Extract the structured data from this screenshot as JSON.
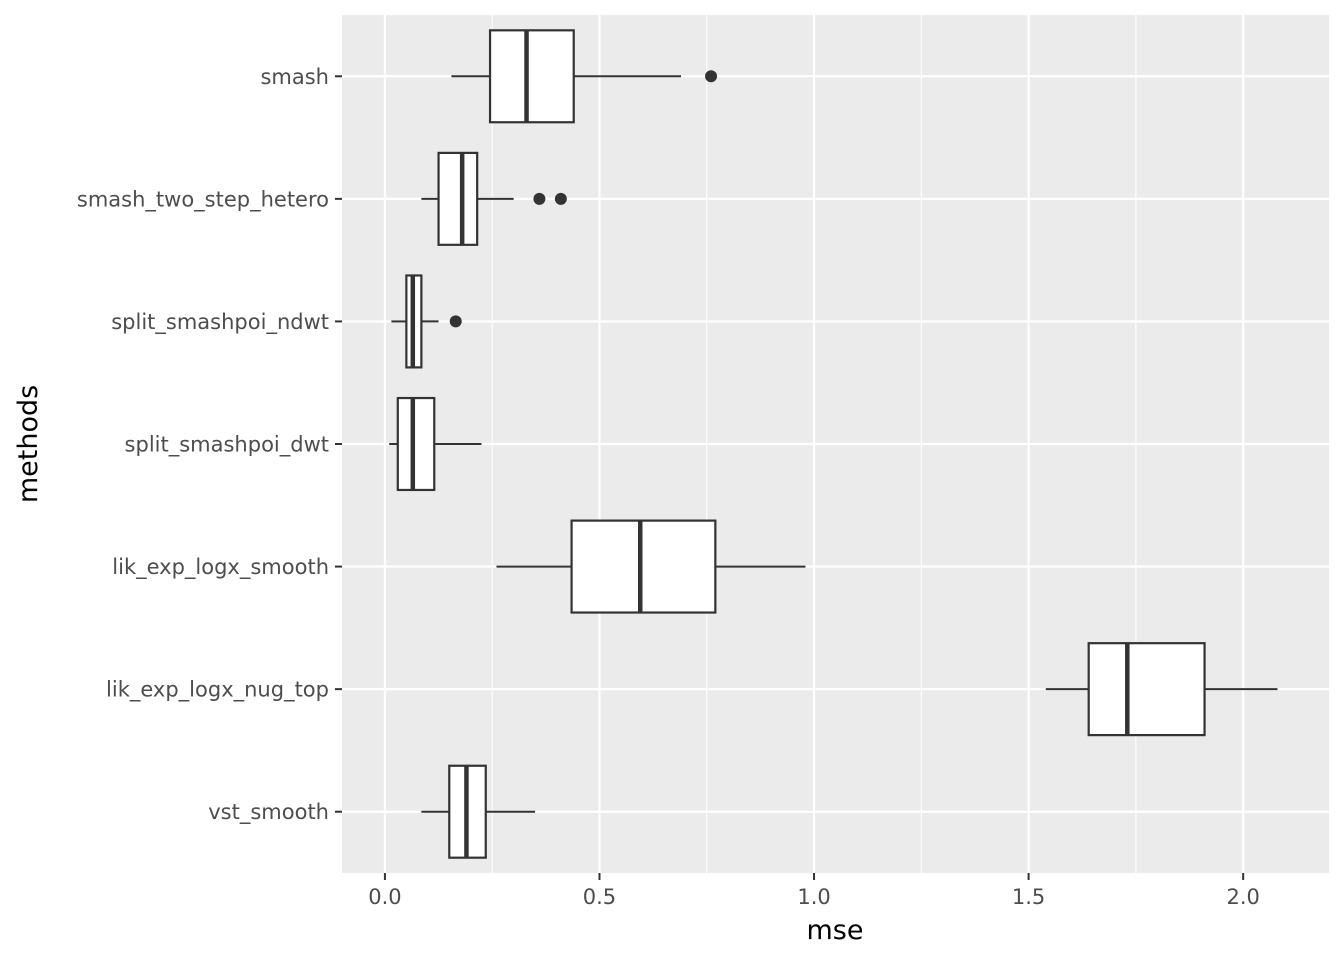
{
  "chart_data": {
    "type": "boxplot",
    "orientation": "horizontal",
    "xlabel": "mse",
    "ylabel": "methods",
    "xlim": [
      -0.1,
      2.2
    ],
    "x_ticks": [
      0.0,
      0.5,
      1.0,
      1.5,
      2.0
    ],
    "x_tick_labels": [
      "0.0",
      "0.5",
      "1.0",
      "1.5",
      "2.0"
    ],
    "grid": true,
    "legend": "none",
    "categories": [
      "smash",
      "smash_two_step_hetero",
      "split_smashpoi_ndwt",
      "split_smashpoi_dwt",
      "lik_exp_logx_smooth",
      "lik_exp_logx_nug_top",
      "vst_smooth"
    ],
    "series": [
      {
        "category": "smash",
        "whisker_low": 0.155,
        "q1": 0.245,
        "median": 0.33,
        "q3": 0.44,
        "whisker_high": 0.69,
        "outliers": [
          0.76
        ]
      },
      {
        "category": "smash_two_step_hetero",
        "whisker_low": 0.085,
        "q1": 0.125,
        "median": 0.18,
        "q3": 0.215,
        "whisker_high": 0.3,
        "outliers": [
          0.36,
          0.41
        ]
      },
      {
        "category": "split_smashpoi_ndwt",
        "whisker_low": 0.015,
        "q1": 0.05,
        "median": 0.065,
        "q3": 0.085,
        "whisker_high": 0.125,
        "outliers": [
          0.165
        ]
      },
      {
        "category": "split_smashpoi_dwt",
        "whisker_low": 0.01,
        "q1": 0.03,
        "median": 0.065,
        "q3": 0.115,
        "whisker_high": 0.225,
        "outliers": []
      },
      {
        "category": "lik_exp_logx_smooth",
        "whisker_low": 0.26,
        "q1": 0.435,
        "median": 0.595,
        "q3": 0.77,
        "whisker_high": 0.98,
        "outliers": []
      },
      {
        "category": "lik_exp_logx_nug_top",
        "whisker_low": 1.54,
        "q1": 1.64,
        "median": 1.73,
        "q3": 1.91,
        "whisker_high": 2.08,
        "outliers": []
      },
      {
        "category": "vst_smooth",
        "whisker_low": 0.085,
        "q1": 0.15,
        "median": 0.19,
        "q3": 0.235,
        "whisker_high": 0.35,
        "outliers": []
      }
    ],
    "colors": {
      "panel": "#ebebeb",
      "grid": "#ffffff",
      "box_fill": "#ffffff",
      "stroke": "#333333"
    }
  }
}
